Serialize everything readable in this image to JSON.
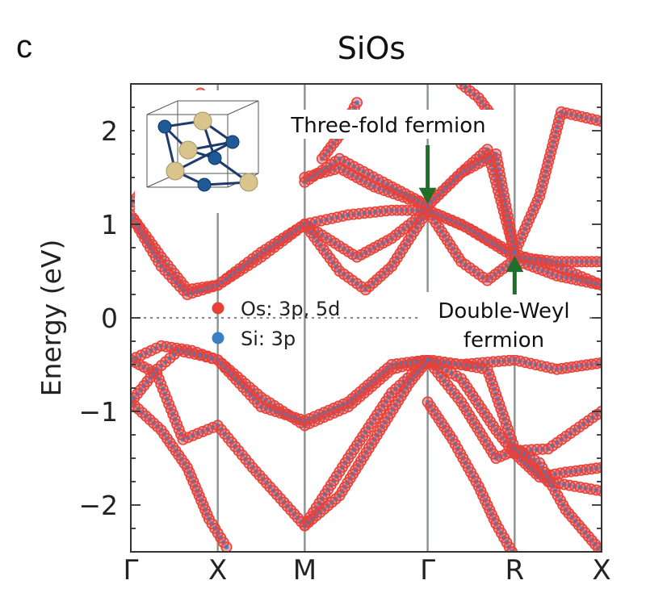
{
  "panel_letter": "c",
  "chart_data": {
    "type": "line",
    "title": "SiOs",
    "xlabel": "",
    "ylabel": "Energy (eV)",
    "ylim": [
      -2.5,
      2.5
    ],
    "k_points": [
      {
        "label": "Γ",
        "x": 0
      },
      {
        "label": "X",
        "x": 1
      },
      {
        "label": "M",
        "x": 2
      },
      {
        "label": "Γ",
        "x": 3.414
      },
      {
        "label": "R",
        "x": 4.414
      },
      {
        "label": "X",
        "x": 5.414
      }
    ],
    "y_ticks": [
      {
        "value": 2,
        "label": "2"
      },
      {
        "value": 1,
        "label": "1"
      },
      {
        "value": 0,
        "label": "0"
      },
      {
        "value": -1,
        "label": "−1"
      },
      {
        "value": -2,
        "label": "−2"
      }
    ],
    "fermi_level": 0,
    "grid": false,
    "legend_position": "center-left",
    "series": [
      {
        "name": "Os: 3p, 5d",
        "color": "#e8413a"
      },
      {
        "name": "Si: 3p",
        "color": "#3a7fc1"
      }
    ],
    "bands": [
      [
        [
          0,
          -0.45
        ],
        [
          0.3,
          -0.6
        ],
        [
          0.6,
          -1.3
        ],
        [
          1,
          -1.15
        ],
        [
          1.4,
          -1.6
        ],
        [
          2,
          -2.22
        ],
        [
          2.5,
          -1.5
        ],
        [
          3,
          -0.8
        ],
        [
          3.414,
          -0.45
        ],
        [
          3.8,
          -0.5
        ],
        [
          4.414,
          -0.45
        ],
        [
          4.9,
          -0.55
        ],
        [
          5.414,
          -0.48
        ]
      ],
      [
        [
          0,
          -0.45
        ],
        [
          0.35,
          -0.3
        ],
        [
          0.7,
          -0.35
        ],
        [
          1,
          -0.45
        ],
        [
          1.5,
          -0.85
        ],
        [
          2,
          -1.15
        ],
        [
          2.5,
          -0.95
        ],
        [
          3,
          -0.55
        ],
        [
          3.414,
          -0.45
        ],
        [
          3.8,
          -0.9
        ],
        [
          4.2,
          -1.5
        ],
        [
          4.414,
          -1.42
        ],
        [
          4.8,
          -1.4
        ],
        [
          5.414,
          -1.0
        ]
      ],
      [
        [
          0,
          -0.9
        ],
        [
          0.35,
          -1.2
        ],
        [
          0.65,
          -1.6
        ],
        [
          0.9,
          -2.15
        ],
        [
          1.1,
          -2.45
        ]
      ],
      [
        [
          0,
          -0.9
        ],
        [
          0.3,
          -0.55
        ],
        [
          0.55,
          -0.35
        ],
        [
          0.8,
          -0.4
        ],
        [
          1,
          -0.45
        ],
        [
          1.5,
          -0.95
        ],
        [
          2,
          -1.1
        ]
      ],
      [
        [
          2,
          -1.1
        ],
        [
          2.5,
          -0.9
        ],
        [
          3,
          -0.5
        ],
        [
          3.414,
          -0.45
        ],
        [
          3.8,
          -0.65
        ],
        [
          4.2,
          -1.2
        ],
        [
          4.414,
          -1.45
        ]
      ],
      [
        [
          3.414,
          -0.45
        ],
        [
          3.8,
          -0.5
        ],
        [
          4.1,
          -0.55
        ],
        [
          4.414,
          -1.4
        ],
        [
          4.8,
          -1.75
        ],
        [
          5.414,
          -1.85
        ]
      ],
      [
        [
          2,
          -2.22
        ],
        [
          2.4,
          -1.9
        ],
        [
          2.8,
          -1.3
        ],
        [
          3.2,
          -0.7
        ],
        [
          3.414,
          -0.45
        ]
      ],
      [
        [
          4.414,
          -1.45
        ],
        [
          4.7,
          -1.7
        ],
        [
          5.0,
          -1.65
        ],
        [
          5.414,
          -1.6
        ]
      ],
      [
        [
          3.414,
          -0.9
        ],
        [
          3.7,
          -1.3
        ],
        [
          4.0,
          -1.8
        ],
        [
          4.2,
          -2.2
        ],
        [
          4.414,
          -2.55
        ]
      ],
      [
        [
          4.414,
          -1.4
        ],
        [
          4.7,
          -1.55
        ],
        [
          5.0,
          -2.05
        ],
        [
          5.414,
          -2.5
        ]
      ],
      [
        [
          0,
          1.1
        ],
        [
          0.35,
          0.65
        ],
        [
          0.65,
          0.3
        ],
        [
          1,
          0.35
        ],
        [
          1.5,
          0.65
        ],
        [
          2,
          1.0
        ],
        [
          2.6,
          0.65
        ],
        [
          3.0,
          0.85
        ],
        [
          3.414,
          1.15
        ],
        [
          3.9,
          0.95
        ],
        [
          4.414,
          0.68
        ],
        [
          4.9,
          0.55
        ],
        [
          5.414,
          0.35
        ]
      ],
      [
        [
          0,
          1.1
        ],
        [
          0.35,
          0.55
        ],
        [
          0.65,
          0.25
        ],
        [
          1,
          0.35
        ],
        [
          1.5,
          0.7
        ],
        [
          2,
          1.0
        ],
        [
          2.4,
          0.5
        ],
        [
          2.7,
          0.3
        ],
        [
          3.0,
          0.55
        ],
        [
          3.414,
          1.15
        ],
        [
          3.8,
          0.6
        ],
        [
          4.1,
          0.4
        ],
        [
          4.414,
          0.62
        ],
        [
          4.9,
          0.45
        ],
        [
          5.414,
          0.35
        ]
      ],
      [
        [
          2,
          1.0
        ],
        [
          2.5,
          1.1
        ],
        [
          3.0,
          1.15
        ],
        [
          3.414,
          1.15
        ],
        [
          3.8,
          1.0
        ],
        [
          4.414,
          0.65
        ],
        [
          4.9,
          0.6
        ],
        [
          5.414,
          0.6
        ]
      ],
      [
        [
          2,
          1.5
        ],
        [
          2.4,
          1.6
        ],
        [
          2.8,
          1.4
        ],
        [
          3.414,
          1.2
        ],
        [
          3.8,
          1.55
        ],
        [
          4.1,
          1.8
        ],
        [
          4.414,
          0.7
        ],
        [
          4.7,
          1.3
        ],
        [
          4.95,
          2.2
        ],
        [
          5.414,
          2.1
        ]
      ],
      [
        [
          2,
          1.45
        ],
        [
          2.4,
          1.7
        ],
        [
          2.9,
          1.45
        ],
        [
          3.414,
          1.2
        ],
        [
          3.8,
          1.55
        ],
        [
          4.2,
          1.75
        ],
        [
          4.414,
          0.7
        ]
      ],
      [
        [
          0,
          1.2
        ],
        [
          0.2,
          1.45
        ],
        [
          0.5,
          1.9
        ],
        [
          0.8,
          2.4
        ]
      ],
      [
        [
          2.2,
          1.7
        ],
        [
          2.4,
          1.95
        ],
        [
          2.6,
          2.3
        ]
      ],
      [
        [
          3.8,
          2.5
        ],
        [
          4.0,
          2.35
        ],
        [
          4.2,
          2.1
        ]
      ]
    ],
    "annotations": [
      {
        "text": "Three-fold fermion",
        "arrow_to_x": 3.414,
        "arrow_to_y": 1.2,
        "arrow_color": "#1f6e2a"
      },
      {
        "text": [
          "Double-Weyl",
          "fermion"
        ],
        "arrow_to_x": 4.414,
        "arrow_to_y": 0.68,
        "arrow_color": "#1f6e2a"
      }
    ],
    "inset": {
      "description_colors": {
        "os_atom": "#d8c48c",
        "si_atom": "#1e5a96",
        "bond": "#1e3b6e"
      }
    }
  }
}
